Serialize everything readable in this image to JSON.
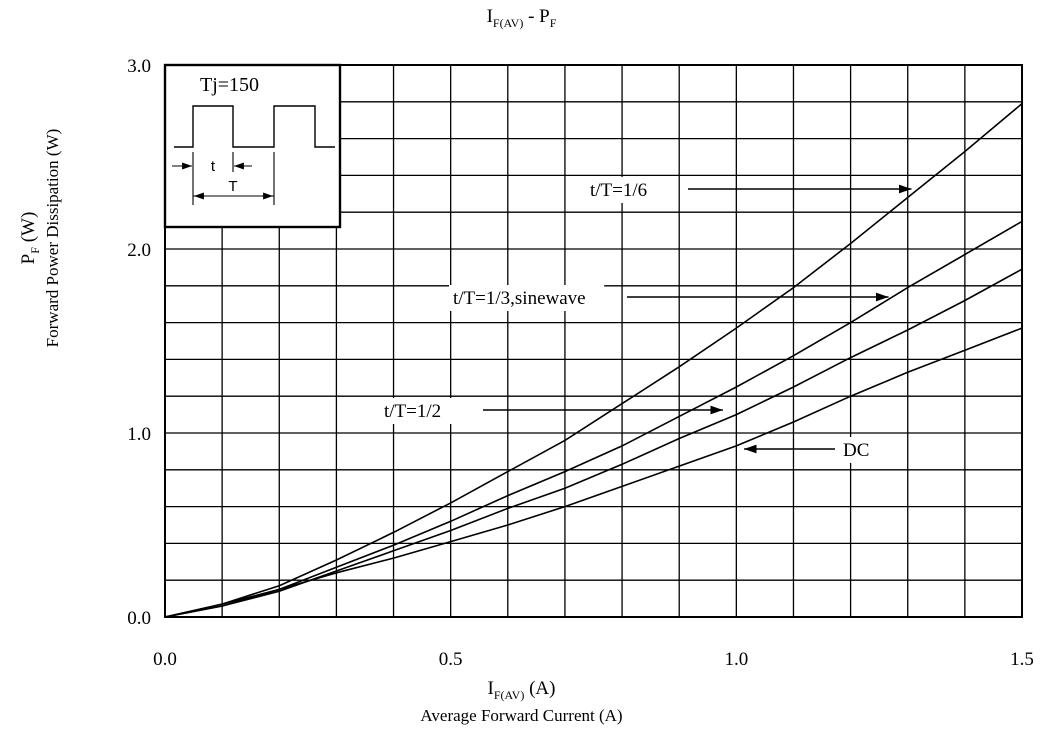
{
  "chart_data": {
    "type": "line",
    "title": {
      "base": "I",
      "sub": "F(AV)",
      "middle": " - P",
      "sub2": "F"
    },
    "xlabel": {
      "base": "I",
      "sub": "F(AV)",
      "unit": " (A)",
      "line2": "Average Forward Current (A)"
    },
    "ylabel": {
      "base": "P",
      "sub": "F",
      "unit": " (W)",
      "line2": "Forward Power Dissipation (W)"
    },
    "xlim": [
      0,
      1.5
    ],
    "ylim": [
      0,
      3.0
    ],
    "x_ticks": [
      "0.0",
      "0.5",
      "1.0",
      "1.5"
    ],
    "y_ticks": [
      "0.0",
      "1.0",
      "2.0",
      "3.0"
    ],
    "grid": true,
    "grid_x_step": 0.1,
    "grid_y_step": 0.2,
    "inset": {
      "label": "Tj=150",
      "t_label": "t",
      "T_label": "T"
    },
    "series": [
      {
        "name": "t/T=1/6",
        "x": [
          0,
          0.1,
          0.2,
          0.3,
          0.4,
          0.5,
          0.6,
          0.7,
          0.8,
          0.9,
          1.0,
          1.1,
          1.2,
          1.3,
          1.4,
          1.5
        ],
        "y": [
          0,
          0.07,
          0.17,
          0.31,
          0.46,
          0.62,
          0.79,
          0.96,
          1.16,
          1.36,
          1.57,
          1.79,
          2.03,
          2.28,
          2.53,
          2.79
        ]
      },
      {
        "name": "t/T=1/3,sinewave",
        "x": [
          0,
          0.1,
          0.2,
          0.3,
          0.4,
          0.5,
          0.6,
          0.7,
          0.8,
          0.9,
          1.0,
          1.1,
          1.2,
          1.3,
          1.4,
          1.5
        ],
        "y": [
          0,
          0.06,
          0.15,
          0.27,
          0.39,
          0.52,
          0.66,
          0.79,
          0.93,
          1.09,
          1.25,
          1.42,
          1.6,
          1.79,
          1.97,
          2.15
        ]
      },
      {
        "name": "t/T=1/2",
        "x": [
          0,
          0.1,
          0.2,
          0.3,
          0.4,
          0.5,
          0.6,
          0.7,
          0.8,
          0.9,
          1.0,
          1.1,
          1.2,
          1.3,
          1.4,
          1.5
        ],
        "y": [
          0,
          0.06,
          0.14,
          0.25,
          0.36,
          0.47,
          0.59,
          0.7,
          0.83,
          0.97,
          1.1,
          1.25,
          1.41,
          1.56,
          1.72,
          1.89
        ]
      },
      {
        "name": "DC",
        "x": [
          0,
          0.1,
          0.2,
          0.3,
          0.4,
          0.5,
          0.6,
          0.7,
          0.8,
          0.9,
          1.0,
          1.1,
          1.2,
          1.3,
          1.4,
          1.5
        ],
        "y": [
          0,
          0.07,
          0.15,
          0.24,
          0.32,
          0.41,
          0.5,
          0.6,
          0.71,
          0.82,
          0.93,
          1.06,
          1.2,
          1.33,
          1.45,
          1.57
        ]
      }
    ],
    "annotations": [
      {
        "text": "t/T=1/6",
        "series": 0,
        "arrow_to_x": 1.31
      },
      {
        "text": "t/T=1/3,sinewave",
        "series": 1,
        "arrow_to_x": 1.27
      },
      {
        "text": "t/T=1/2",
        "series": 2,
        "arrow_to_x": 0.98
      },
      {
        "text": "DC",
        "series": 3,
        "arrow_to_x": 1.01
      }
    ]
  }
}
